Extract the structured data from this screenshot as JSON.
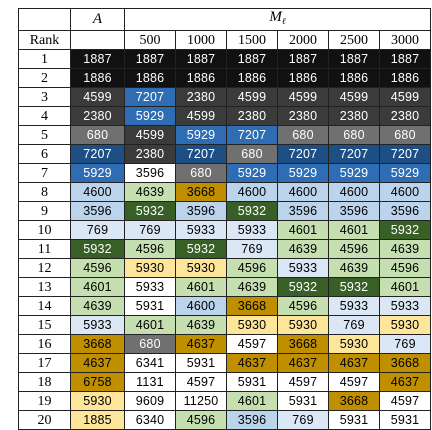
{
  "header": {
    "col_a": "A",
    "col_m": "M",
    "col_m_sub": "ℓ",
    "rank_label": "Rank",
    "a_sub": "",
    "m_values": [
      "500",
      "1000",
      "1500",
      "2000",
      "2500",
      "3000"
    ]
  },
  "colors": {
    "black": "#111111",
    "dark": "#3b3b3b",
    "gray": "#707070",
    "blue": "#2e6db4",
    "navy": "#1e4f84",
    "lightblue": "#bcd3ec",
    "paleblue": "#dbe7f5",
    "green": "#375f26",
    "lightgreen": "#c5dfb0",
    "gold": "#bf8f00",
    "paleyellow": "#fde699",
    "white": "#ffffff"
  },
  "rows": [
    {
      "rank": "1",
      "cells": [
        [
          "1887",
          "black"
        ],
        [
          "1887",
          "black"
        ],
        [
          "1887",
          "black"
        ],
        [
          "1887",
          "black"
        ],
        [
          "1887",
          "black"
        ],
        [
          "1887",
          "black"
        ],
        [
          "1887",
          "black"
        ]
      ]
    },
    {
      "rank": "2",
      "cells": [
        [
          "1886",
          "black"
        ],
        [
          "1886",
          "black"
        ],
        [
          "1886",
          "black"
        ],
        [
          "1886",
          "black"
        ],
        [
          "1886",
          "black"
        ],
        [
          "1886",
          "black"
        ],
        [
          "1886",
          "black"
        ]
      ]
    },
    {
      "rank": "3",
      "cells": [
        [
          "4599",
          "dark"
        ],
        [
          "7207",
          "blue"
        ],
        [
          "2380",
          "dark"
        ],
        [
          "4599",
          "dark"
        ],
        [
          "4599",
          "dark"
        ],
        [
          "4599",
          "dark"
        ],
        [
          "4599",
          "dark"
        ]
      ]
    },
    {
      "rank": "4",
      "cells": [
        [
          "2380",
          "dark"
        ],
        [
          "5929",
          "blue"
        ],
        [
          "4599",
          "dark"
        ],
        [
          "2380",
          "dark"
        ],
        [
          "2380",
          "dark"
        ],
        [
          "2380",
          "dark"
        ],
        [
          "2380",
          "dark"
        ]
      ]
    },
    {
      "rank": "5",
      "cells": [
        [
          "680",
          "gray"
        ],
        [
          "4599",
          "dark"
        ],
        [
          "5929",
          "blue"
        ],
        [
          "7207",
          "blue"
        ],
        [
          "680",
          "gray"
        ],
        [
          "680",
          "gray"
        ],
        [
          "680",
          "gray"
        ]
      ]
    },
    {
      "rank": "6",
      "cells": [
        [
          "7207",
          "navy"
        ],
        [
          "2380",
          "dark"
        ],
        [
          "7207",
          "navy"
        ],
        [
          "680",
          "gray"
        ],
        [
          "7207",
          "navy"
        ],
        [
          "7207",
          "navy"
        ],
        [
          "7207",
          "navy"
        ]
      ]
    },
    {
      "rank": "7",
      "cells": [
        [
          "5929",
          "blue"
        ],
        [
          "3596",
          "white"
        ],
        [
          "680",
          "gray"
        ],
        [
          "5929",
          "blue"
        ],
        [
          "5929",
          "blue"
        ],
        [
          "5929",
          "blue"
        ],
        [
          "5929",
          "blue"
        ]
      ]
    },
    {
      "rank": "8",
      "cells": [
        [
          "4600",
          "lightblue"
        ],
        [
          "4639",
          "lightgreen"
        ],
        [
          "3668",
          "gold"
        ],
        [
          "4600",
          "lightblue"
        ],
        [
          "4600",
          "lightblue"
        ],
        [
          "4600",
          "lightblue"
        ],
        [
          "4600",
          "lightblue"
        ]
      ]
    },
    {
      "rank": "9",
      "cells": [
        [
          "3596",
          "lightblue"
        ],
        [
          "5932",
          "green"
        ],
        [
          "3596",
          "lightblue"
        ],
        [
          "5932",
          "green"
        ],
        [
          "3596",
          "lightblue"
        ],
        [
          "3596",
          "lightblue"
        ],
        [
          "3596",
          "lightblue"
        ]
      ]
    },
    {
      "rank": "10",
      "cells": [
        [
          "769",
          "paleblue"
        ],
        [
          "769",
          "paleblue"
        ],
        [
          "5933",
          "paleblue"
        ],
        [
          "5933",
          "paleblue"
        ],
        [
          "4601",
          "lightgreen"
        ],
        [
          "4601",
          "lightgreen"
        ],
        [
          "5932",
          "green"
        ]
      ]
    },
    {
      "rank": "11",
      "cells": [
        [
          "5932",
          "green"
        ],
        [
          "4596",
          "lightgreen"
        ],
        [
          "5932",
          "green"
        ],
        [
          "769",
          "paleblue"
        ],
        [
          "4639",
          "lightgreen"
        ],
        [
          "4596",
          "lightgreen"
        ],
        [
          "4639",
          "lightgreen"
        ]
      ]
    },
    {
      "rank": "12",
      "cells": [
        [
          "4596",
          "lightgreen"
        ],
        [
          "5930",
          "paleyellow"
        ],
        [
          "5930",
          "paleyellow"
        ],
        [
          "4596",
          "lightgreen"
        ],
        [
          "5933",
          "paleblue"
        ],
        [
          "4639",
          "lightgreen"
        ],
        [
          "4596",
          "lightgreen"
        ]
      ]
    },
    {
      "rank": "13",
      "cells": [
        [
          "4601",
          "lightgreen"
        ],
        [
          "5933",
          "white"
        ],
        [
          "4601",
          "lightgreen"
        ],
        [
          "4639",
          "lightgreen"
        ],
        [
          "5932",
          "green"
        ],
        [
          "5932",
          "green"
        ],
        [
          "4601",
          "lightgreen"
        ]
      ]
    },
    {
      "rank": "14",
      "cells": [
        [
          "4639",
          "lightgreen"
        ],
        [
          "5931",
          "white"
        ],
        [
          "4600",
          "lightblue"
        ],
        [
          "3668",
          "gold"
        ],
        [
          "4596",
          "lightgreen"
        ],
        [
          "5933",
          "paleblue"
        ],
        [
          "5933",
          "paleblue"
        ]
      ]
    },
    {
      "rank": "15",
      "cells": [
        [
          "5933",
          "paleblue"
        ],
        [
          "4601",
          "lightgreen"
        ],
        [
          "4639",
          "lightgreen"
        ],
        [
          "5930",
          "paleyellow"
        ],
        [
          "5930",
          "paleyellow"
        ],
        [
          "769",
          "paleblue"
        ],
        [
          "5930",
          "paleyellow"
        ]
      ]
    },
    {
      "rank": "16",
      "cells": [
        [
          "3668",
          "gold"
        ],
        [
          "680",
          "gray"
        ],
        [
          "4637",
          "gold"
        ],
        [
          "4597",
          "white"
        ],
        [
          "3668",
          "gold"
        ],
        [
          "5930",
          "paleyellow"
        ],
        [
          "769",
          "paleblue"
        ]
      ]
    },
    {
      "rank": "17",
      "cells": [
        [
          "4637",
          "gold"
        ],
        [
          "6341",
          "white"
        ],
        [
          "5931",
          "white"
        ],
        [
          "4637",
          "gold"
        ],
        [
          "4637",
          "gold"
        ],
        [
          "4637",
          "gold"
        ],
        [
          "3668",
          "gold"
        ]
      ]
    },
    {
      "rank": "18",
      "cells": [
        [
          "6758",
          "gold"
        ],
        [
          "1131",
          "white"
        ],
        [
          "4597",
          "white"
        ],
        [
          "5931",
          "white"
        ],
        [
          "4597",
          "white"
        ],
        [
          "4597",
          "white"
        ],
        [
          "4637",
          "gold"
        ]
      ]
    },
    {
      "rank": "19",
      "cells": [
        [
          "5930",
          "paleyellow"
        ],
        [
          "9609",
          "white"
        ],
        [
          "11250",
          "white"
        ],
        [
          "4601",
          "lightgreen"
        ],
        [
          "5931",
          "white"
        ],
        [
          "3668",
          "gold"
        ],
        [
          "4597",
          "white"
        ]
      ]
    },
    {
      "rank": "20",
      "cells": [
        [
          "1885",
          "paleyellow"
        ],
        [
          "6340",
          "white"
        ],
        [
          "4596",
          "lightgreen"
        ],
        [
          "3596",
          "lightblue"
        ],
        [
          "769",
          "paleblue"
        ],
        [
          "5931",
          "white"
        ],
        [
          "5931",
          "white"
        ]
      ]
    }
  ]
}
